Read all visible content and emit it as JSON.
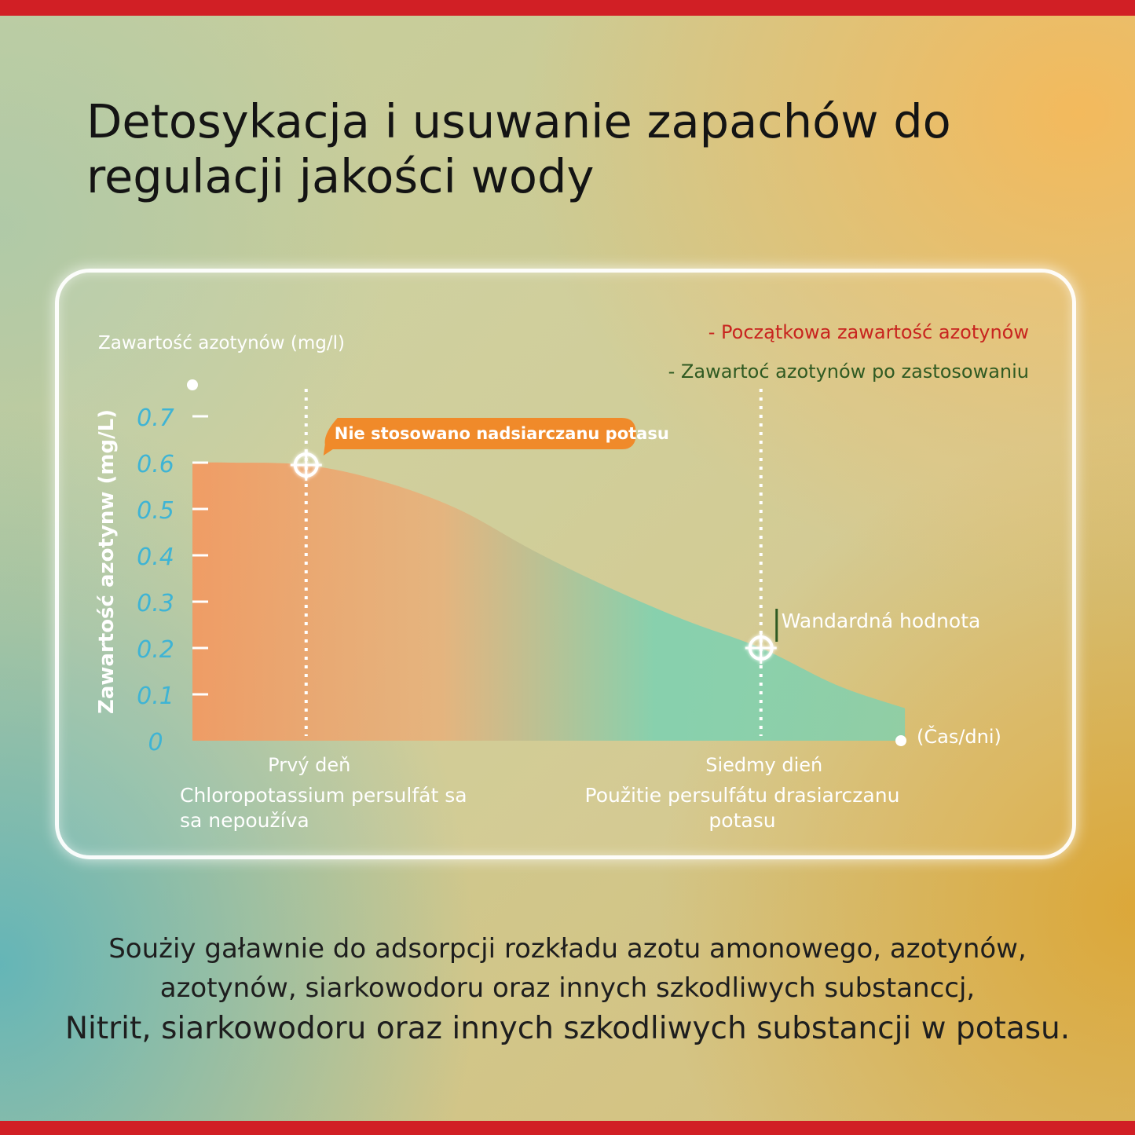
{
  "page": {
    "title": "Detosykacja i usuwanie zapachów do regulacji jakości wody",
    "description": [
      "Soużiy gaławnie do adsorpcji rozkładu azotu amonowego, azotynów,",
      "azotynów, siarkowodoru oraz innych szkodliwych substanccj,",
      "Nitrit, siarkowodoru oraz innych szkodliwych substancji w potasu."
    ]
  },
  "colors": {
    "accent_red": "#d11f25",
    "tick_blue": "#3fb4d4",
    "callout_orange": "#f08a2a",
    "curve_start": "#f29a62",
    "curve_end": "#7fd1b0",
    "legend_red": "#c8241f",
    "legend_green": "#2f5a22"
  },
  "chart_data": {
    "type": "area",
    "title": "Zawartość azotynów (mg/l)",
    "ylabel": "Zawartość azotynw (mg/L)",
    "xlabel": "(Čas/dni)",
    "ylim": [
      0,
      0.7
    ],
    "yticks": [
      "0",
      "0.1",
      "0.2",
      "0.3",
      "0.4",
      "0.5",
      "0.6",
      "0.7"
    ],
    "legend": [
      {
        "name": "Początkowa zawartość azotynów",
        "color": "#c8241f"
      },
      {
        "name": "Zawartoć azotynów po zastosowaniu",
        "color": "#2f5a22"
      }
    ],
    "legend_position": "top-right",
    "grid": false,
    "curve": {
      "x": [
        0,
        1,
        2,
        3,
        4,
        5,
        6,
        7,
        8,
        8.9
      ],
      "y": [
        0.6,
        0.595,
        0.56,
        0.5,
        0.41,
        0.33,
        0.26,
        0.2,
        0.12,
        0.07
      ]
    },
    "markers": [
      {
        "x": 1,
        "y": 0.595,
        "label": "Nie stosowano nadsiarczanu potasu",
        "category": "Prvý deň",
        "caption": [
          "Chloropotassium persulfát sa",
          "sa nepoužíva"
        ]
      },
      {
        "x": 7,
        "y": 0.2,
        "label": "Wandardná hodnota",
        "category": "Siedmy dień",
        "caption": [
          "Použitie persulfátu drasiarczanu",
          "potasu"
        ]
      }
    ]
  }
}
